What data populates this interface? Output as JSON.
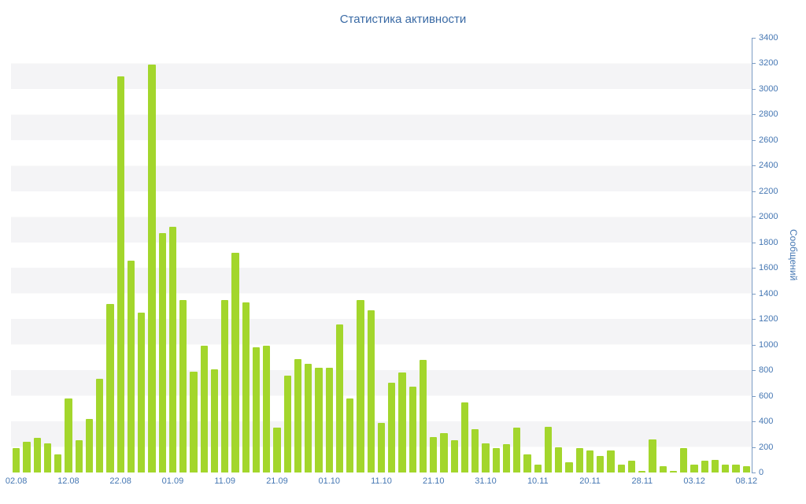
{
  "chart_data": {
    "type": "bar",
    "title": "Статистика активности",
    "ylabel": "Сообщений",
    "xlabel": "",
    "ylim": [
      0,
      3400
    ],
    "ytick_step": 200,
    "grid": "alternating-horizontal-bands",
    "legend": "none",
    "y_axis_position": "right",
    "x_tick_every_n_bars": 5,
    "x_tick_labels": [
      "02.08",
      "12.08",
      "22.08",
      "01.09",
      "11.09",
      "21.09",
      "01.10",
      "11.10",
      "21.10",
      "31.10",
      "10.11",
      "20.11",
      "28.11",
      "03.12",
      "08.12"
    ],
    "values": [
      190,
      240,
      270,
      230,
      140,
      580,
      250,
      420,
      730,
      1320,
      3100,
      1660,
      1250,
      3190,
      1870,
      1920,
      1350,
      790,
      990,
      810,
      1350,
      1720,
      1330,
      980,
      990,
      350,
      760,
      890,
      850,
      820,
      820,
      1160,
      580,
      1350,
      1270,
      390,
      700,
      780,
      670,
      880,
      280,
      310,
      250,
      550,
      340,
      230,
      190,
      220,
      350,
      140,
      60,
      360,
      200,
      80,
      190,
      170,
      130,
      170,
      60,
      90,
      10,
      260,
      50,
      10,
      190,
      60,
      90,
      100,
      60,
      60,
      50
    ]
  },
  "colors": {
    "bar": "#a3d62c",
    "axis": "#7b9cc4",
    "tick_label": "#4577b3",
    "title": "#3a6aa5",
    "band": "#f4f4f6"
  }
}
